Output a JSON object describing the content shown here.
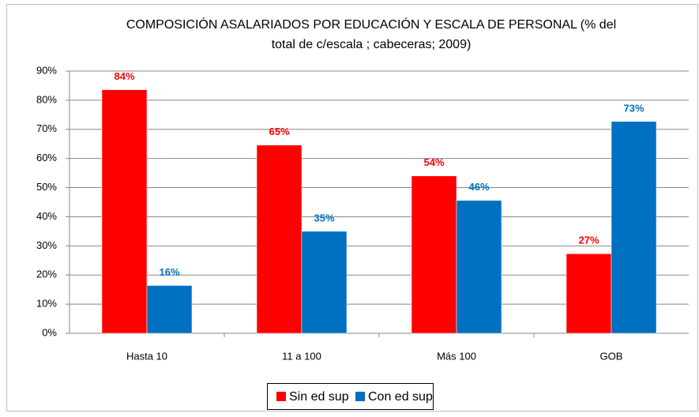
{
  "chart_data": {
    "type": "bar",
    "title": [
      "COMPOSICIÓN ASALARIADOS POR  EDUCACIÓN Y ESCALA DE PERSONAL (% del",
      "total de c/escala ; cabeceras; 2009)"
    ],
    "categories": [
      "Hasta 10",
      "11 a 100",
      "Más 100",
      "GOB"
    ],
    "series": [
      {
        "name": "Sin ed sup",
        "color": "#ff0000",
        "values": [
          83.6,
          64.6,
          54.0,
          27.3
        ],
        "value_labels": [
          "84%",
          "65%",
          "54%",
          "27%"
        ],
        "label_color": "#ff0000"
      },
      {
        "name": "Con ed sup",
        "color": "#0070c0",
        "values": [
          16.4,
          35.0,
          45.6,
          72.7
        ],
        "value_labels": [
          "16%",
          "35%",
          "46%",
          "73%"
        ],
        "label_color": "#0070c0"
      }
    ],
    "ylim": [
      0,
      90
    ],
    "yticks": [
      {
        "value": 0,
        "label": "0%"
      },
      {
        "value": 10,
        "label": "10%"
      },
      {
        "value": 20,
        "label": "20%"
      },
      {
        "value": 30,
        "label": "30%"
      },
      {
        "value": 40,
        "label": "40%"
      },
      {
        "value": 50,
        "label": "50%"
      },
      {
        "value": 60,
        "label": "60%"
      },
      {
        "value": 70,
        "label": "70%"
      },
      {
        "value": 80,
        "label": "80%"
      },
      {
        "value": 90,
        "label": "90%"
      }
    ],
    "grid": true,
    "legend": "bottom"
  }
}
